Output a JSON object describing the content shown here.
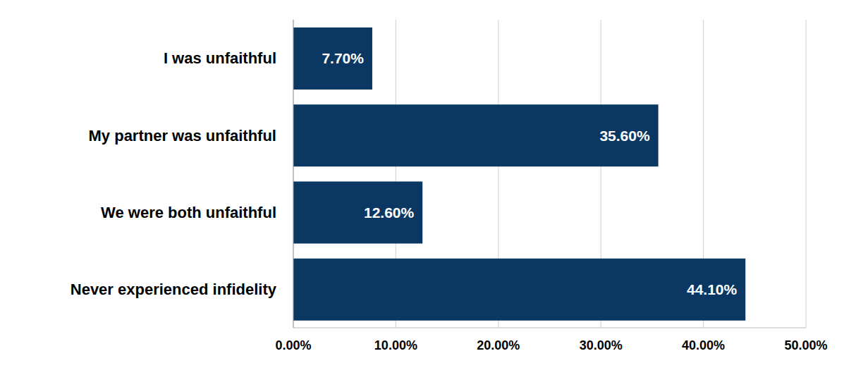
{
  "chart_data": {
    "type": "bar",
    "orientation": "horizontal",
    "categories": [
      "I was unfaithful",
      "My partner was unfaithful",
      "We were both unfaithful",
      "Never experienced infidelity"
    ],
    "values": [
      7.7,
      35.6,
      12.6,
      44.1
    ],
    "value_labels": [
      "7.70%",
      "35.60%",
      "12.60%",
      "44.10%"
    ],
    "data_labels": true,
    "color": "#0b3862",
    "xlim": [
      0,
      50
    ],
    "xticks": [
      {
        "value": 0,
        "label": "0.00%"
      },
      {
        "value": 10,
        "label": "10.00%"
      },
      {
        "value": 20,
        "label": "20.00%"
      },
      {
        "value": 30,
        "label": "30.00%"
      },
      {
        "value": 40,
        "label": "40.00%"
      },
      {
        "value": 50,
        "label": "50.00%"
      }
    ],
    "grid": true
  }
}
